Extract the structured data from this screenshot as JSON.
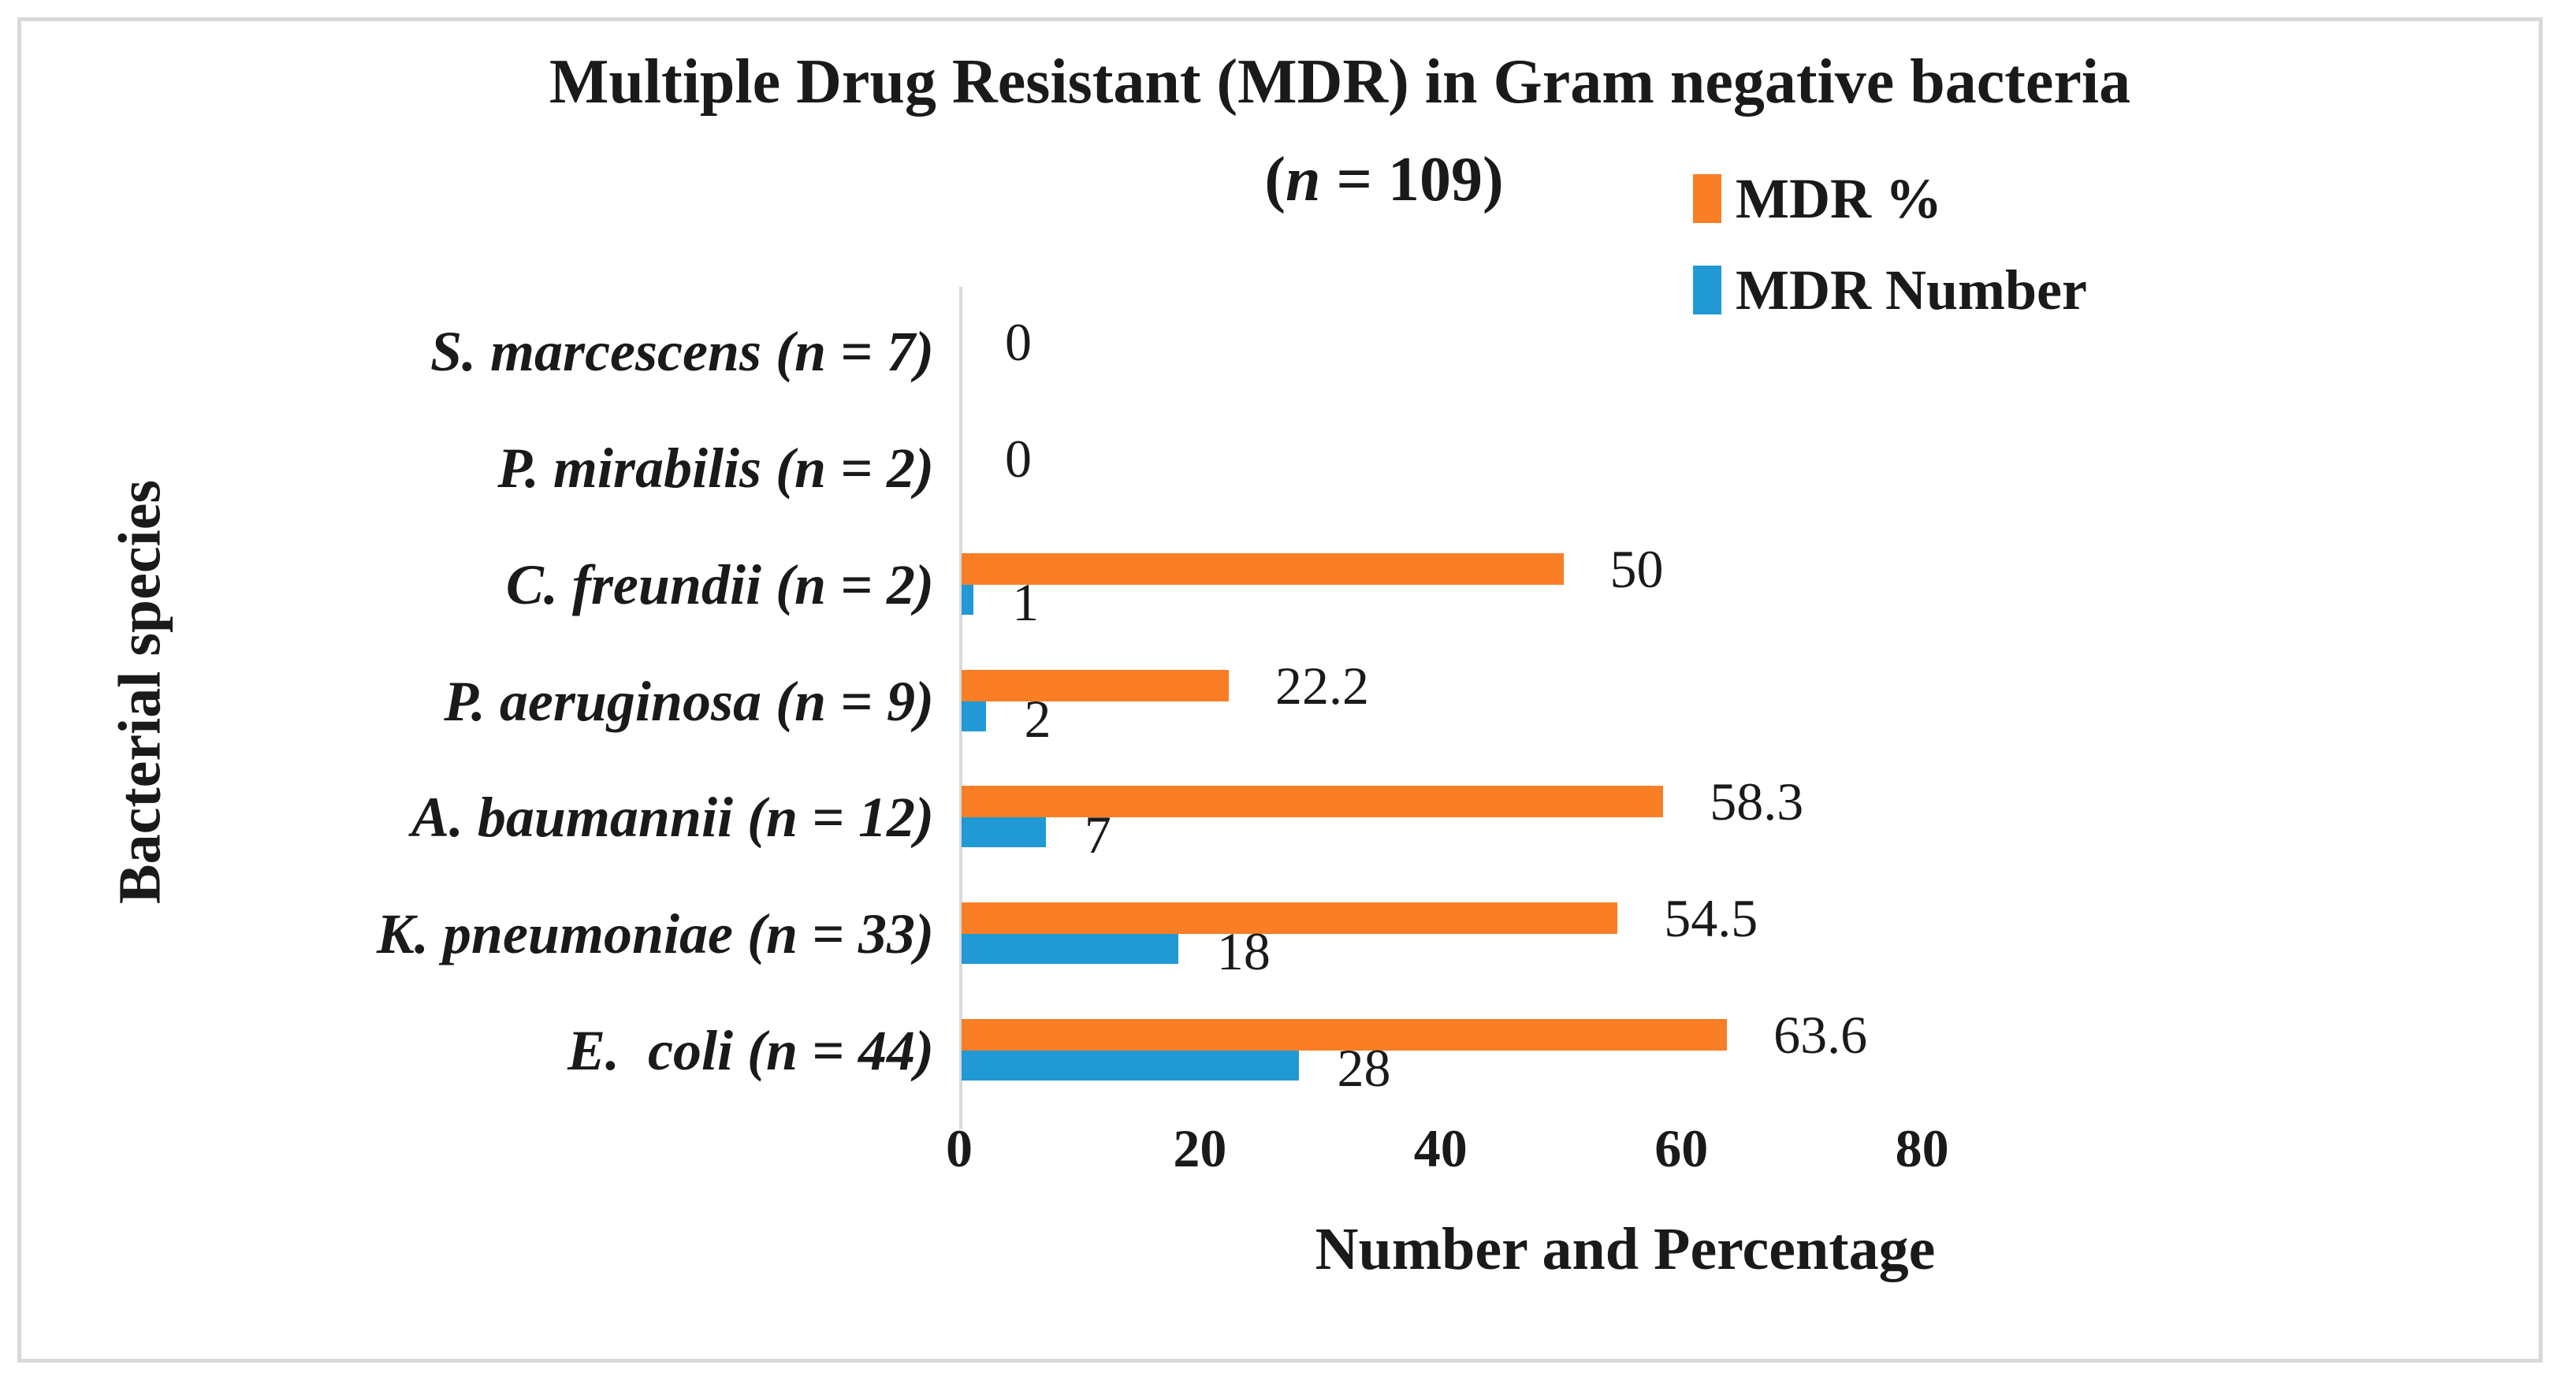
{
  "figure": {
    "background": "#ffffff",
    "border_color": "#d9d9d9",
    "axis_line_color": "#d9d9d9",
    "text_color": "#1a1a1a"
  },
  "title": {
    "line1": "Multiple Drug Resistant (MDR) in Gram negative bacteria",
    "line2_open": "(",
    "line2_n": "n",
    "line2_rest": " = 109)"
  },
  "legend": [
    {
      "label": "MDR %",
      "color": "#f97e25"
    },
    {
      "label": "MDR Number",
      "color": "#2199d4"
    }
  ],
  "axes": {
    "x_title": "Number and Percentage",
    "y_title": "Bacterial species"
  },
  "chart_data": {
    "type": "bar",
    "orientation": "horizontal",
    "title": "Multiple Drug Resistant (MDR) in Gram negative bacteria (n = 109)",
    "categories_top_to_bottom": [
      "S. marcescens (n = 7)",
      "P. mirabilis (n = 2)",
      "C. freundii (n = 2)",
      "P. aeruginosa (n = 9)",
      "A. baumannii (n = 12)",
      "K. pneumoniae (n = 33)",
      "E.  coli (n = 44)"
    ],
    "series": [
      {
        "name": "MDR %",
        "color": "#f97e25",
        "values": [
          0,
          0,
          50,
          22.2,
          58.3,
          54.5,
          63.6
        ],
        "data_labels": [
          "0",
          "0",
          "50",
          "22.2",
          "58.3",
          "54.5",
          "63.6"
        ]
      },
      {
        "name": "MDR Number",
        "color": "#2199d4",
        "values": [
          0,
          0,
          1,
          2,
          7,
          18,
          28
        ],
        "data_labels": [
          "",
          "",
          "1",
          "2",
          "7",
          "18",
          "28"
        ]
      }
    ],
    "xlabel": "Number and Percentage",
    "ylabel": "Bacterial species",
    "xlim": [
      0,
      80
    ],
    "x_ticks": [
      0,
      20,
      40,
      60,
      80
    ],
    "grid": false,
    "legend_position": "top-right"
  }
}
